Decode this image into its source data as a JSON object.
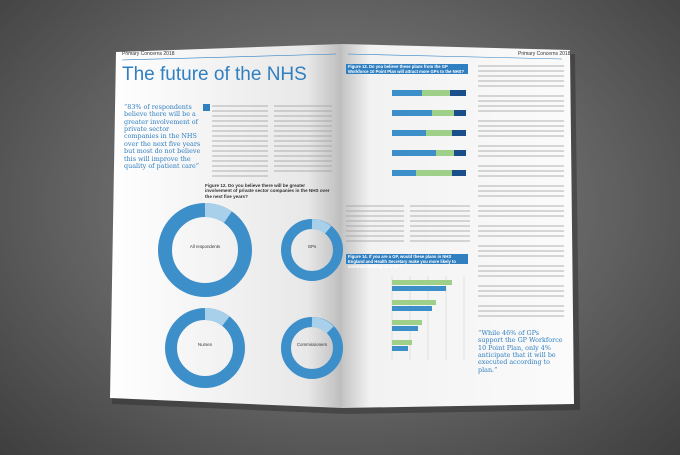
{
  "header": {
    "left": "Primary Concerns 2018",
    "right": "Primary Concerns 2018"
  },
  "left_page": {
    "title": "The future of the NHS",
    "pull_quote": "“83% of respondents believe there will be a greater involvement of private sector companies in the NHS over the next five years but most do not believe this will improve the quality of patient care”",
    "figure_12": {
      "caption": "Figure 12. Do you believe there will be greater involvement of private sector companies in the NHS over the next five years?",
      "donuts": [
        "All respondents",
        "GPs",
        "Nurses",
        "Commissioners"
      ]
    }
  },
  "right_page": {
    "figure_13": {
      "caption": "Figure 13. Do you believe these plans from the GP Workforce 10 Point Plan will attract more GPs to the NHS?"
    },
    "figure_14": {
      "caption": "Figure 14. If you are a GP, would these plans in NHS England and Health Secretary make you more likely to continue working as a GP?"
    },
    "pull_quote": "“While 46% of GPs support the GP Workforce 10 Point Plan, only 4% anticipate that it will be executed according to plan.”"
  }
}
